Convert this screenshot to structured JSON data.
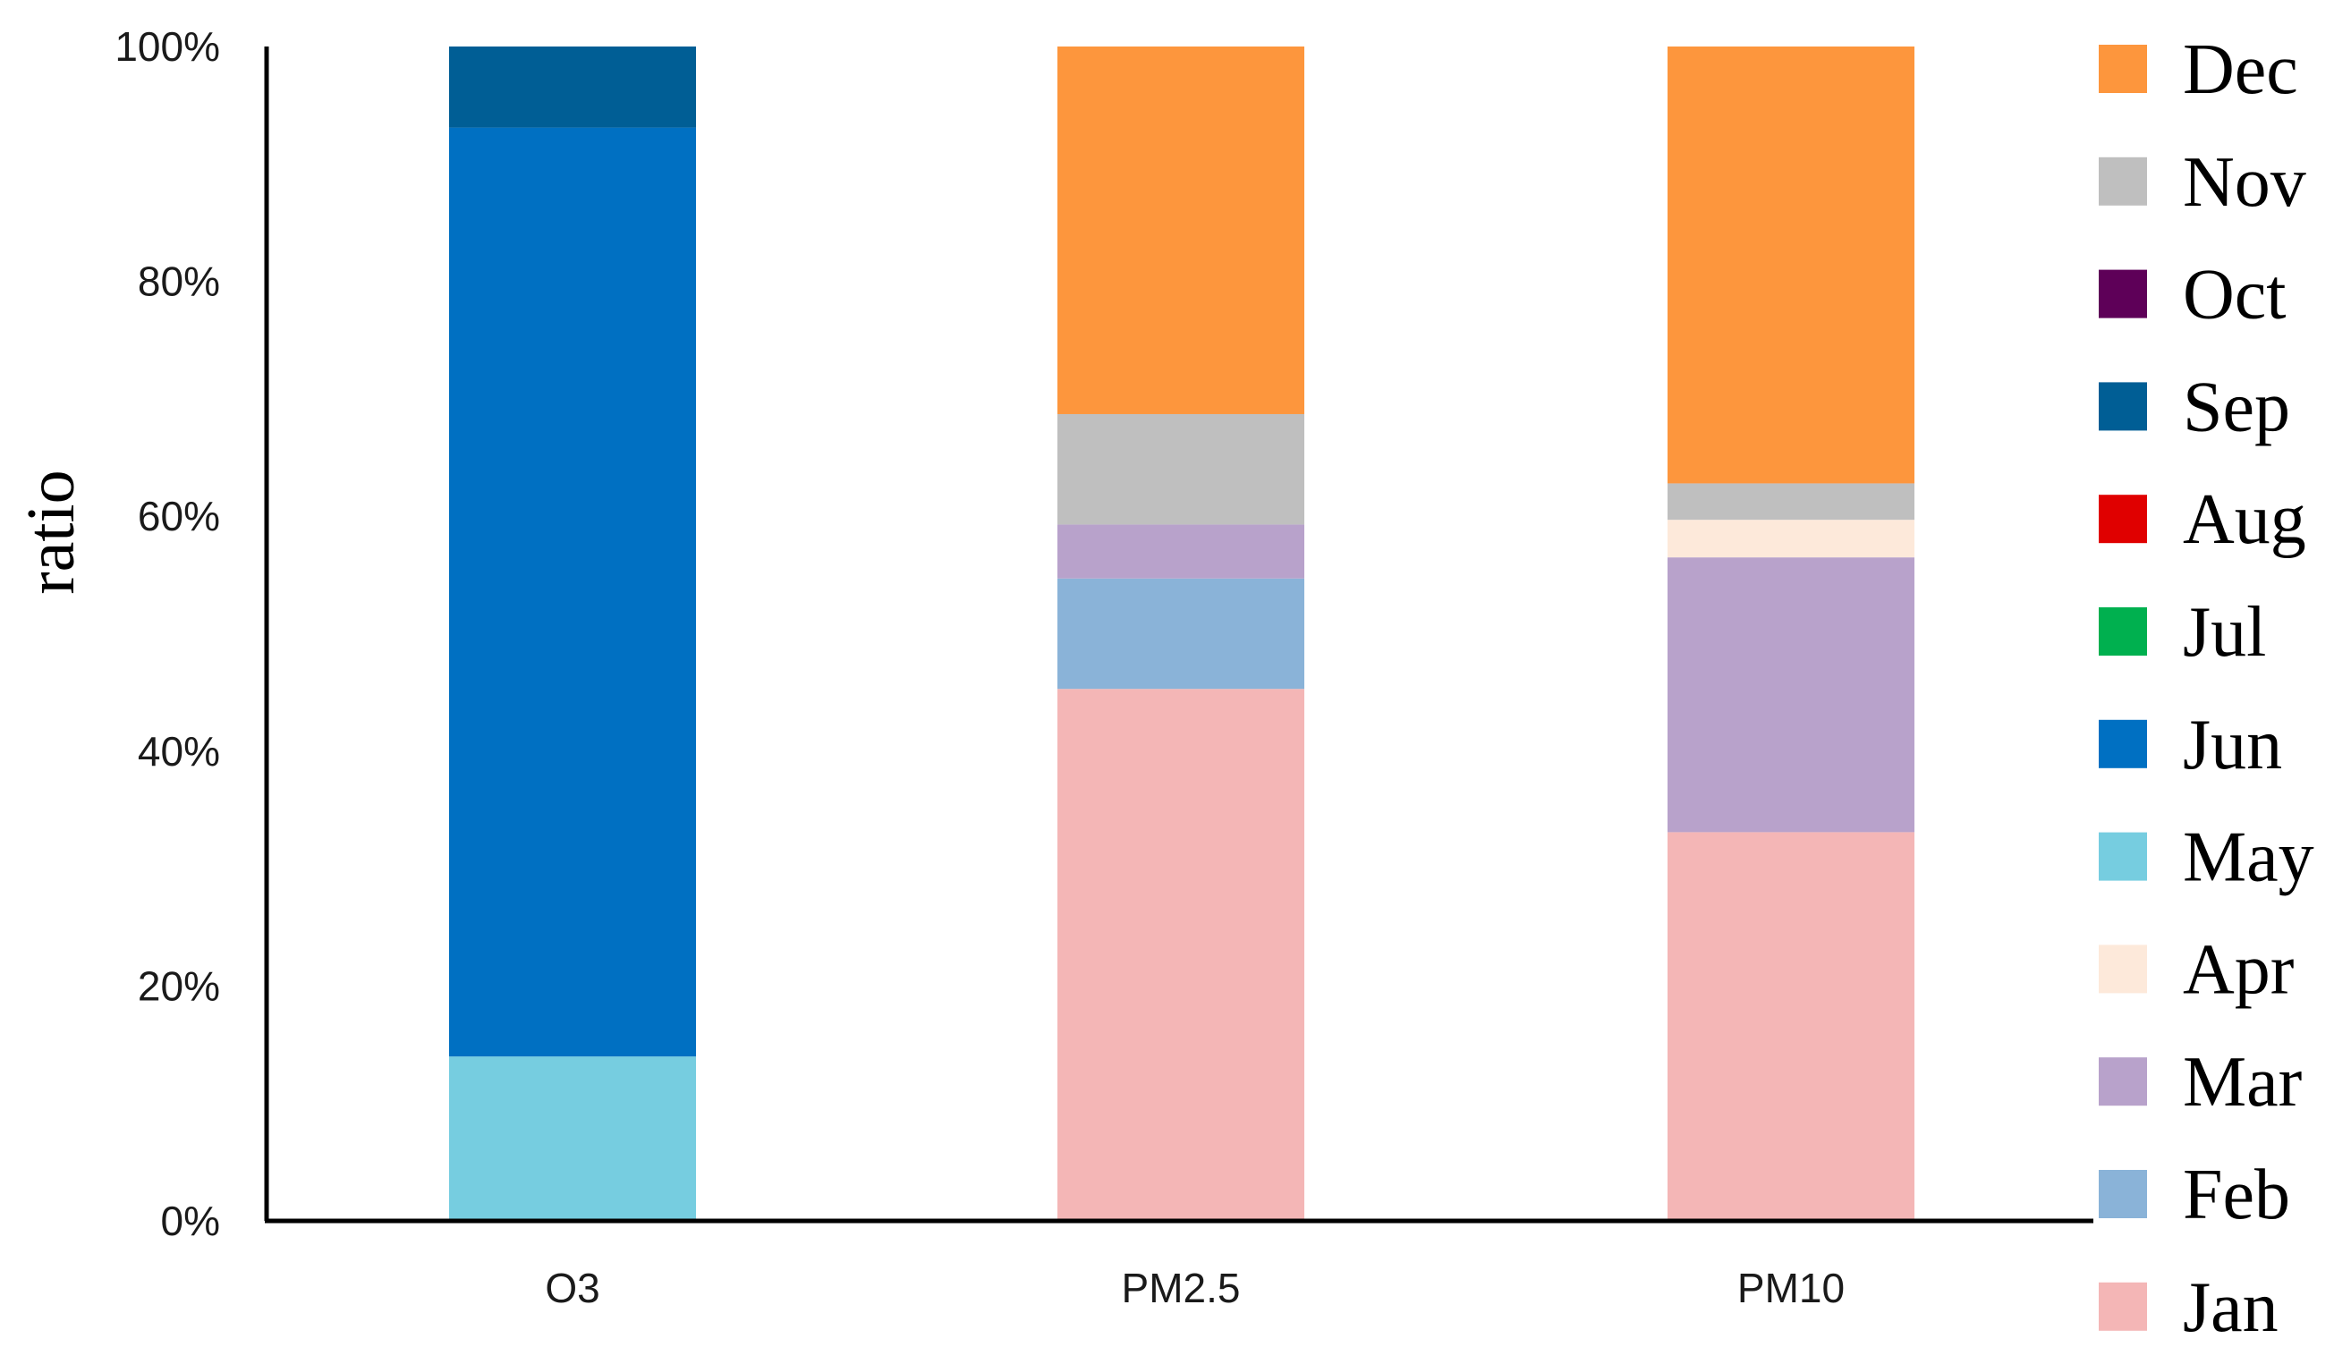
{
  "chart_data": {
    "type": "bar",
    "stacked": true,
    "categories": [
      "O3",
      "PM2.5",
      "PM10"
    ],
    "ylabel": "ratio",
    "xlabel": "",
    "ylim": [
      0,
      100
    ],
    "yticks": [
      "0%",
      "20%",
      "40%",
      "60%",
      "80%",
      "100%"
    ],
    "legend_position": "right",
    "grid": false,
    "series": [
      {
        "name": "Jan",
        "color": "#f4b6b6",
        "values": [
          0,
          45.3,
          33.1
        ]
      },
      {
        "name": "Feb",
        "color": "#8ab3d8",
        "values": [
          0,
          9.4,
          0
        ]
      },
      {
        "name": "Mar",
        "color": "#b8a2cb",
        "values": [
          0,
          4.6,
          23.4
        ]
      },
      {
        "name": "Apr",
        "color": "#fde9da",
        "values": [
          0,
          0,
          3.2
        ]
      },
      {
        "name": "May",
        "color": "#76cde0",
        "values": [
          14.0,
          0,
          0
        ]
      },
      {
        "name": "Jun",
        "color": "#0070c2",
        "values": [
          79.1,
          0,
          0
        ]
      },
      {
        "name": "Jul",
        "color": "#00b04f",
        "values": [
          0,
          0,
          0
        ]
      },
      {
        "name": "Aug",
        "color": "#e00000",
        "values": [
          0,
          0,
          0
        ]
      },
      {
        "name": "Oct",
        "color": "#5e0058",
        "values": [
          0,
          0,
          0
        ]
      },
      {
        "name": "Sep",
        "color": "#005e95",
        "values": [
          6.9,
          0,
          0
        ]
      },
      {
        "name": "Nov",
        "color": "#bfbfbf",
        "values": [
          0,
          9.4,
          3.1
        ]
      },
      {
        "name": "Dec",
        "color": "#fd963d",
        "values": [
          0,
          31.3,
          37.2
        ]
      }
    ],
    "legend_order": [
      "Dec",
      "Nov",
      "Oct",
      "Sep",
      "Aug",
      "Jul",
      "Jun",
      "May",
      "Apr",
      "Mar",
      "Feb",
      "Jan"
    ]
  }
}
